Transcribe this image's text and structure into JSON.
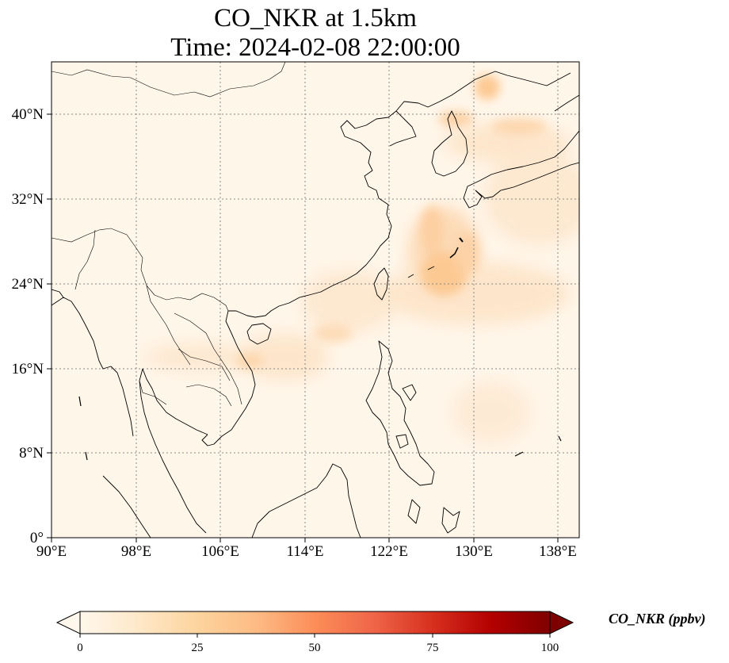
{
  "title": {
    "line1": "CO_NKR at 1.5km",
    "line2": "Time: 2024-02-08 22:00:00"
  },
  "map": {
    "variable": "CO_NKR",
    "level": "1.5km",
    "extent": {
      "lon_min": 90,
      "lon_max": 140,
      "lat_min": 0,
      "lat_max": 45
    },
    "lon_ticks": [
      "90°E",
      "98°E",
      "106°E",
      "114°E",
      "122°E",
      "130°E",
      "138°E"
    ],
    "lat_ticks": [
      "0°",
      "8°N",
      "16°N",
      "24°N",
      "32°N",
      "40°N"
    ],
    "gridlines": true,
    "colormap": "OrRd",
    "plume_regions": [
      "southern China coast / Gulf of Tonkin",
      "East China Sea east of Taiwan",
      "Korean Peninsula / Sea of Japan",
      "plume extending northeast toward Japan"
    ]
  },
  "colorbar": {
    "label": "CO_NKR (ppbv)",
    "min": 0,
    "max": 100,
    "ticks": [
      "0",
      "25",
      "50",
      "75",
      "100"
    ],
    "extend": "both",
    "colors": [
      "#fff7ec",
      "#fee8c8",
      "#fdd49e",
      "#fdbb84",
      "#fc8d59",
      "#ef6548",
      "#d7301f",
      "#b30000",
      "#7f0000"
    ]
  }
}
